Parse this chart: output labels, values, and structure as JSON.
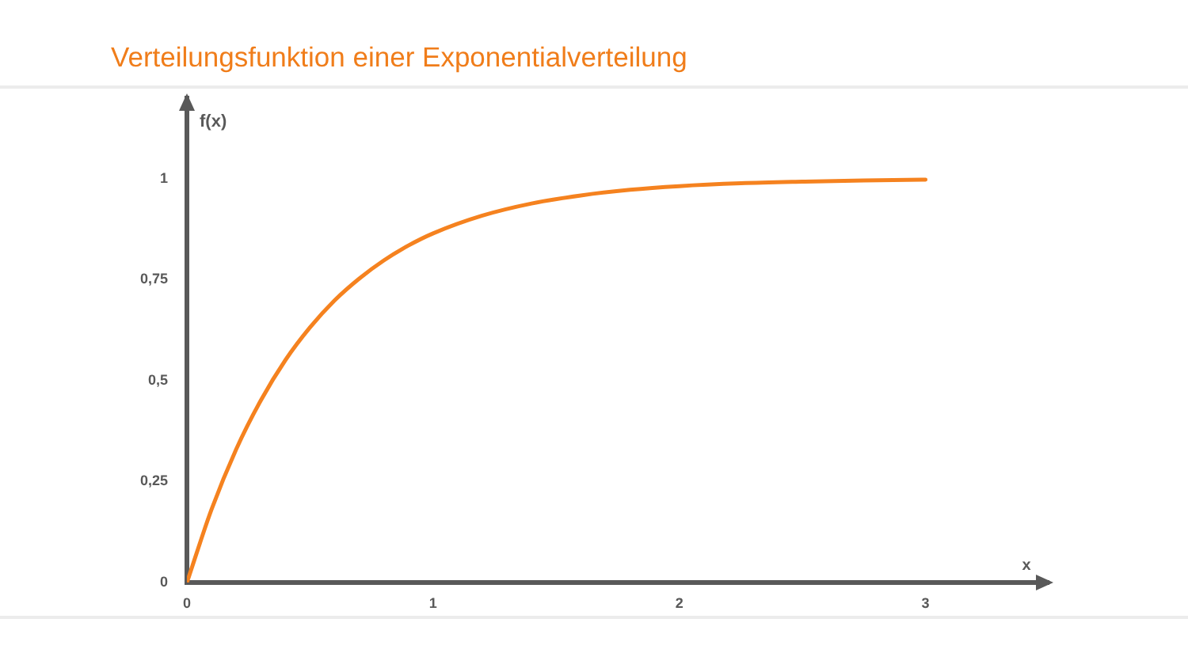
{
  "chart_data": {
    "type": "line",
    "title": "Verteilungsfunktion einer Exponentialverteilung",
    "xlabel": "x",
    "ylabel": "f(x)",
    "x": [
      0,
      0.1,
      0.2,
      0.3,
      0.4,
      0.5,
      0.6,
      0.7,
      0.8,
      0.9,
      1,
      1.2,
      1.4,
      1.6,
      1.8,
      2,
      2.25,
      2.5,
      2.75,
      3
    ],
    "series": [
      {
        "color": "#f5821f",
        "values": [
          0,
          0.181,
          0.33,
          0.451,
          0.551,
          0.632,
          0.699,
          0.753,
          0.798,
          0.835,
          0.865,
          0.909,
          0.939,
          0.959,
          0.973,
          0.982,
          0.989,
          0.993,
          0.996,
          0.998
        ]
      }
    ],
    "xlim": [
      0,
      3.5
    ],
    "ylim": [
      0,
      1.2
    ],
    "xticks": [
      0,
      1,
      2,
      3
    ],
    "yticks": [
      0,
      {
        "value": 0.25,
        "label": "0,25"
      },
      {
        "value": 0.5,
        "label": "0,5"
      },
      {
        "value": 0.75,
        "label": "0,75"
      },
      1
    ],
    "marker": "none"
  }
}
